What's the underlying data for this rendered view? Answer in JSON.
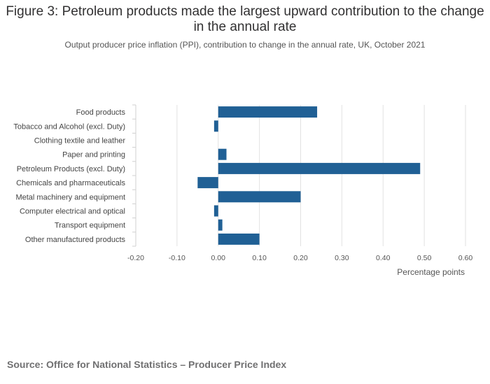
{
  "header": {
    "title": "Figure 3: Petroleum products made the largest upward contribution to the change in the annual rate",
    "subtitle": "Output producer price inflation (PPI), contribution to change in the annual rate, UK, October 2021"
  },
  "footer": {
    "source": "Source: Office for National Statistics – Producer Price Index"
  },
  "chart_data": {
    "type": "bar",
    "orientation": "horizontal",
    "title": "Figure 3: Petroleum products made the largest upward contribution to the change in the annual rate",
    "subtitle": "Output producer price inflation (PPI), contribution to change in the annual rate, UK, October 2021",
    "xlabel": "Percentage points",
    "ylabel": "",
    "xlim": [
      -0.2,
      0.6
    ],
    "ticks": [
      "-0.20",
      "-0.10",
      "0.00",
      "0.10",
      "0.20",
      "0.30",
      "0.40",
      "0.50",
      "0.60"
    ],
    "tick_values": [
      -0.2,
      -0.1,
      0,
      0.1,
      0.2,
      0.3,
      0.4,
      0.5,
      0.6
    ],
    "grid": "vertical",
    "legend": "none",
    "categories": [
      "Food products",
      "Tobacco and Alcohol (excl. Duty)",
      "Clothing textile and leather",
      "Paper and printing",
      "Petroleum Products (excl. Duty)",
      "Chemicals and pharmaceuticals",
      "Metal machinery and equipment",
      "Computer electrical and optical",
      "Transport equipment",
      "Other manufactured products"
    ],
    "values": [
      0.24,
      -0.01,
      0.0,
      0.02,
      0.49,
      -0.05,
      0.2,
      -0.01,
      0.01,
      0.1
    ],
    "color": "#206095"
  }
}
